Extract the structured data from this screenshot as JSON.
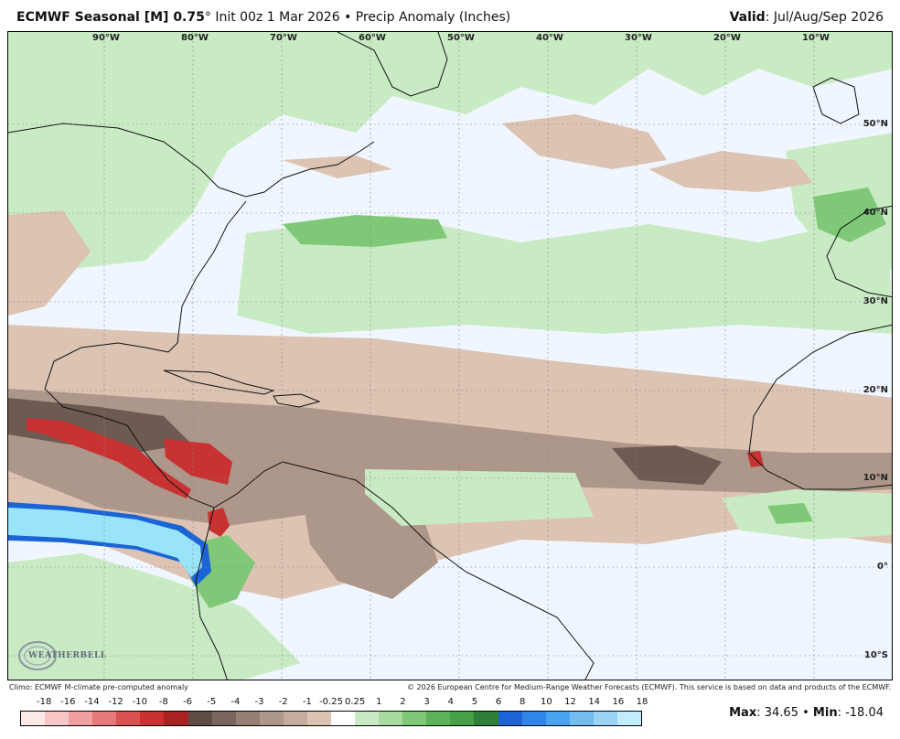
{
  "header": {
    "model": "ECMWF Seasonal [M] 0.75",
    "degree": "°",
    "init": "Init 00z 1 Mar 2026",
    "bullet": "•",
    "product": "Precip Anomaly (Inches)",
    "valid_label": "Valid",
    "valid_value": ": Jul/Aug/Sep 2026"
  },
  "map": {
    "longitude_labels": [
      "90°W",
      "80°W",
      "70°W",
      "60°W",
      "50°W",
      "40°W",
      "30°W",
      "20°W",
      "10°W"
    ],
    "latitude_labels": [
      "50°N",
      "40°N",
      "30°N",
      "20°N",
      "10°N",
      "0°",
      "10°S"
    ],
    "logo_text": "WEATHERBELL"
  },
  "footnotes": {
    "climo": "Climo: ECMWF M-climate pre-computed anomaly",
    "copyright": "© 2026 European Centre for Medium-Range Weather Forecasts (ECMWF). This service is based on data and products of the ECMWF."
  },
  "colorbar": {
    "ticks": [
      "-18",
      "-16",
      "-14",
      "-12",
      "-10",
      "-8",
      "-6",
      "-5",
      "-4",
      "-3",
      "-2",
      "-1",
      "-0.25",
      "0.25",
      "1",
      "2",
      "3",
      "4",
      "5",
      "6",
      "8",
      "10",
      "12",
      "14",
      "16",
      "18"
    ],
    "colors": [
      "#fde8e8",
      "#f8c6c6",
      "#f0a0a0",
      "#e67a7a",
      "#d85252",
      "#c83232",
      "#a82222",
      "#5e4c47",
      "#7a665e",
      "#957f74",
      "#ad978a",
      "#c4ad9e",
      "#dcc3b2",
      "#ffffff",
      "#c9ebc4",
      "#a7dba0",
      "#7fc878",
      "#5db35a",
      "#46a048",
      "#2f7e39",
      "#1c64d6",
      "#2f86e8",
      "#4aa3ee",
      "#73bcf2",
      "#99d4f6",
      "#c0ecfb"
    ]
  },
  "stats": {
    "max_label": "Max",
    "max_value": ": 34.65",
    "bullet": "•",
    "min_label": "Min",
    "min_value": ": -18.04"
  },
  "palette": {
    "ocean_neutral": "#f0f6ff",
    "dry_light": "#dcc3b2",
    "dry_medium": "#ad978a",
    "dry_dark": "#6e5a52",
    "dry_strong": "#c83232",
    "wet_light": "#c9ebc4",
    "wet_medium": "#7fc878",
    "wet_dark": "#46a048",
    "wet_extreme": "#99e4f8",
    "wet_extreme_edge": "#1c64d6"
  }
}
